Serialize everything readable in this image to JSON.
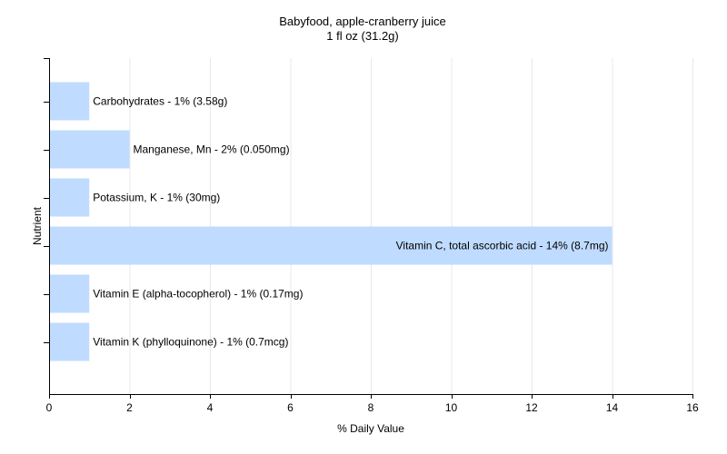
{
  "colors": {
    "bar_fill": "#bfdbff",
    "grid": "#e8e8e8",
    "axis": "#000000",
    "background": "#ffffff"
  },
  "chart_data": {
    "type": "bar",
    "orientation": "horizontal",
    "title": "Babyfood, apple-cranberry juice",
    "subtitle": "1 fl oz (31.2g)",
    "xlabel": "% Daily Value",
    "ylabel": "Nutrient",
    "xlim": [
      0,
      16
    ],
    "xticks": [
      0,
      2,
      4,
      6,
      8,
      10,
      12,
      14,
      16
    ],
    "grid": "vertical",
    "legend": "none",
    "categories": [
      "Carbohydrates",
      "Manganese, Mn",
      "Potassium, K",
      "Vitamin C, total ascorbic acid",
      "Vitamin E (alpha-tocopherol)",
      "Vitamin K (phylloquinone)"
    ],
    "values": [
      1,
      2,
      1,
      14,
      1,
      1
    ],
    "bar_labels": [
      "Carbohydrates - 1% (3.58g)",
      "Manganese, Mn - 2% (0.050mg)",
      "Potassium, K - 1% (30mg)",
      "Vitamin C, total ascorbic acid - 14% (8.7mg)",
      "Vitamin E (alpha-tocopherol) - 1% (0.17mg)",
      "Vitamin K (phylloquinone) - 1% (0.7mcg)"
    ]
  }
}
